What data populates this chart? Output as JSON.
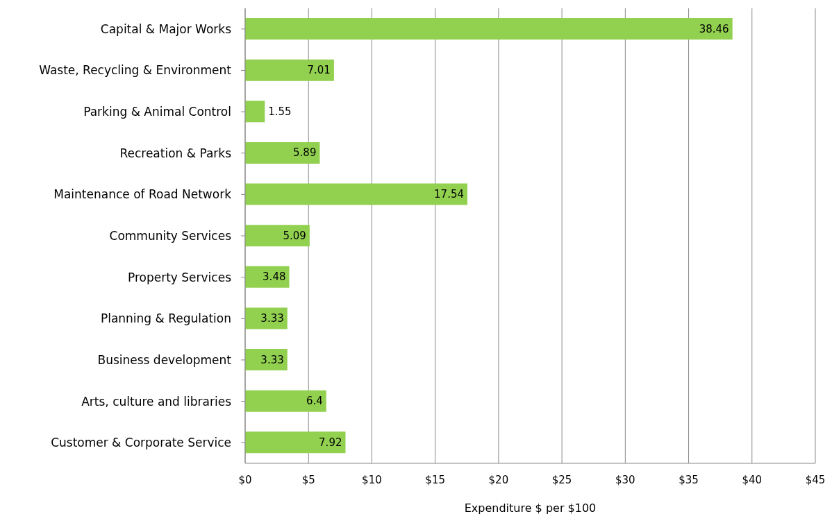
{
  "chart_data": {
    "type": "bar",
    "orientation": "horizontal",
    "xlabel": "Expenditure $ per $100",
    "categories": [
      "Capital & Major Works",
      "Waste, Recycling & Environment",
      "Parking & Animal Control",
      "Recreation & Parks",
      "Maintenance of Road Network",
      "Community Services",
      "Property Services",
      "Planning & Regulation",
      "Business development",
      "Arts, culture and libraries",
      "Customer & Corporate Service"
    ],
    "values": [
      38.46,
      7.01,
      1.55,
      5.89,
      17.54,
      5.09,
      3.48,
      3.33,
      3.33,
      6.4,
      7.92
    ],
    "color": "#92d050",
    "xlim": [
      0,
      45
    ],
    "xticks": [
      {
        "value": 0,
        "label": "$0"
      },
      {
        "value": 5,
        "label": "$5"
      },
      {
        "value": 10,
        "label": "$10"
      },
      {
        "value": 15,
        "label": "$15"
      },
      {
        "value": 20,
        "label": "$20"
      },
      {
        "value": 25,
        "label": "$25"
      },
      {
        "value": 30,
        "label": "$30"
      },
      {
        "value": 35,
        "label": "$35"
      },
      {
        "value": 40,
        "label": "$40"
      },
      {
        "value": 45,
        "label": "$45"
      }
    ],
    "grid": "x",
    "data_labels": true
  }
}
